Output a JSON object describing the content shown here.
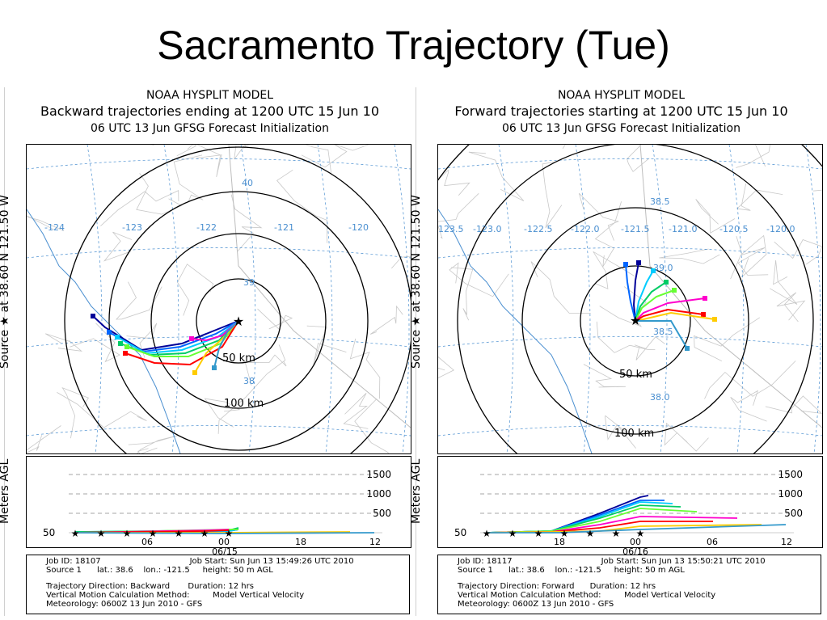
{
  "title": "Sacramento Trajectory (Tue)",
  "panels": [
    {
      "header1": "NOAA HYSPLIT MODEL",
      "header2": "Backward trajectories ending at 1200 UTC 15 Jun 10",
      "header3": "06 UTC 13 Jun    GFSG  Forecast Initialization",
      "side_label": "Source ★ at   38.60 N  121.50 W",
      "height_label": "Meters AGL",
      "lon_labels": [
        "-124",
        "-123",
        "-122",
        "-121",
        "-120"
      ],
      "lat_labels": [
        "40",
        "39",
        "38"
      ],
      "ring_labels": [
        "50 km",
        "100 km"
      ],
      "height_ticks": [
        "1500",
        "1000",
        "500"
      ],
      "height_start": "50",
      "time_labels": [
        "06",
        "00",
        "18",
        "12"
      ],
      "date_label": "06/15",
      "footer": {
        "job_id": "Job ID: 18107",
        "job_start": "Job Start: Sun Jun 13 15:49:26 UTC 2010",
        "source_line": "Source 1      lat.: 38.6    lon.: -121.5     height: 50 m AGL",
        "direction": "Trajectory Direction: Backward       Duration: 12 hrs",
        "vertical": "Vertical Motion Calculation Method:         Model Vertical Velocity",
        "meteorology": "Meteorology: 0600Z 13 Jun 2010 - GFS"
      }
    },
    {
      "header1": "NOAA HYSPLIT MODEL",
      "header2": "Forward trajectories starting at 1200 UTC 15 Jun 10",
      "header3": "06 UTC 13 Jun    GFSG  Forecast Initialization",
      "side_label": "Source ★ at   38.60 N  121.50 W",
      "height_label": "Meters AGL",
      "lon_labels": [
        "-123.5",
        "-123.0",
        "-122.5",
        "-122.0",
        "-121.5",
        "-121.0",
        "-120.5",
        "-120.0"
      ],
      "lat_labels": [
        "38.5",
        "39.0",
        "38.5",
        "38.0"
      ],
      "ring_labels": [
        "50 km",
        "100 km"
      ],
      "height_ticks": [
        "1500",
        "1000",
        "500"
      ],
      "height_start": "50",
      "time_labels": [
        "18",
        "00",
        "06",
        "12"
      ],
      "date_label": "06/16",
      "footer": {
        "job_id": "Job ID: 18117",
        "job_start": "Job Start: Sun Jun 13 15:50:21 UTC 2010",
        "source_line": "Source 1      lat.: 38.6    lon.: -121.5     height: 50 m AGL",
        "direction": "Trajectory Direction: Forward      Duration: 12 hrs",
        "vertical": "Vertical Motion Calculation Method:         Model Vertical Velocity",
        "meteorology": "Meteorology: 0600Z 13 Jun 2010 - GFS"
      }
    }
  ],
  "colors": {
    "trajectories": [
      "#000099",
      "#0066ff",
      "#00ccff",
      "#00cc66",
      "#66ff33",
      "#ff00cc",
      "#ff0000",
      "#ffcc00",
      "#3399cc"
    ],
    "graticule": "#4a8fd0",
    "rings": "#000000"
  }
}
